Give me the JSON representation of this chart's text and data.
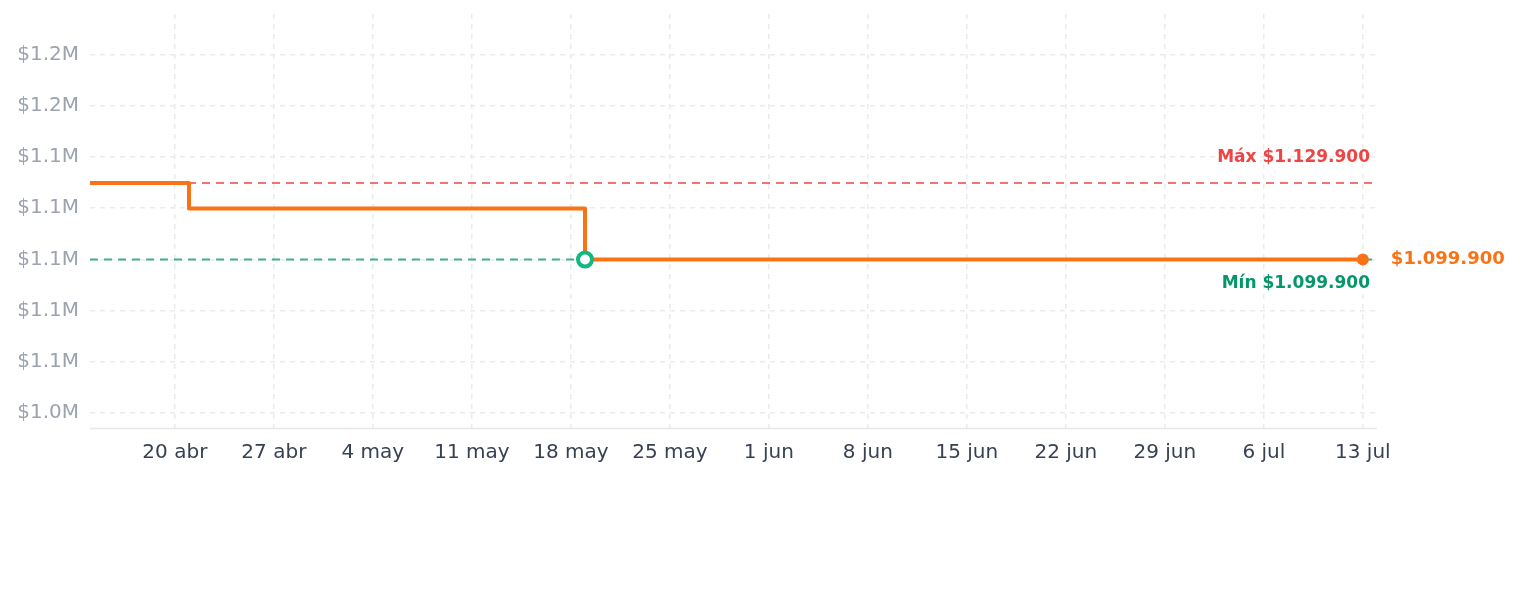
{
  "chart_data": {
    "type": "step",
    "x": [
      "--04-14",
      "--04-21",
      "--05-19",
      "--07-13"
    ],
    "series": [
      {
        "color": "#f97316",
        "values": [
          1129900,
          1119900,
          1099900,
          1099900
        ]
      },
      {
        "type": "scatter",
        "color": "#10b981",
        "x": [
          "--05-19"
        ],
        "values": [
          1099900
        ],
        "marker": "circle"
      },
      {
        "type": "scatter",
        "color": "#f97316",
        "x": [
          "--07-13"
        ],
        "values": [
          1099900
        ],
        "marker": "circle"
      }
    ],
    "xlim": [
      "--04-14",
      "--07-14"
    ],
    "xticks": [
      {
        "value": "--04-20",
        "label": "20 abr"
      },
      {
        "value": "--04-27",
        "label": "27 abr"
      },
      {
        "value": "--05-04",
        "label": "4 may"
      },
      {
        "value": "--05-11",
        "label": "11 may"
      },
      {
        "value": "--05-18",
        "label": "18 may"
      },
      {
        "value": "--05-25",
        "label": "25 may"
      },
      {
        "value": "--06-01",
        "label": "1 jun"
      },
      {
        "value": "--06-08",
        "label": "8 jun"
      },
      {
        "value": "--06-15",
        "label": "15 jun"
      },
      {
        "value": "--06-22",
        "label": "22 jun"
      },
      {
        "value": "--06-29",
        "label": "29 jun"
      },
      {
        "value": "--07-06",
        "label": "6 jul"
      },
      {
        "value": "--07-13",
        "label": "13 jul"
      }
    ],
    "ylim": [
      1034000,
      1196000
    ],
    "yticks": [
      {
        "value": 1040000,
        "label": "$1.0M"
      },
      {
        "value": 1060000,
        "label": "$1.1M"
      },
      {
        "value": 1080000,
        "label": "$1.1M"
      },
      {
        "value": 1100000,
        "label": "$1.1M"
      },
      {
        "value": 1120000,
        "label": "$1.1M"
      },
      {
        "value": 1140000,
        "label": "$1.1M"
      },
      {
        "value": 1160000,
        "label": "$1.2M"
      },
      {
        "value": 1180000,
        "label": "$1.2M"
      }
    ],
    "grid": true,
    "ref_lines": [
      {
        "axis": "y",
        "value": 1129900,
        "label": "Máx $1.129.900",
        "color": "#ef4444",
        "line_style": "dashed"
      },
      {
        "axis": "y",
        "value": 1099900,
        "label": "Mín $1.099.900",
        "color": "#059669",
        "line_style": "dashed"
      }
    ],
    "annotations": [
      {
        "text": "$1.099.900",
        "x": "--07-13",
        "y": 1099900
      }
    ]
  }
}
